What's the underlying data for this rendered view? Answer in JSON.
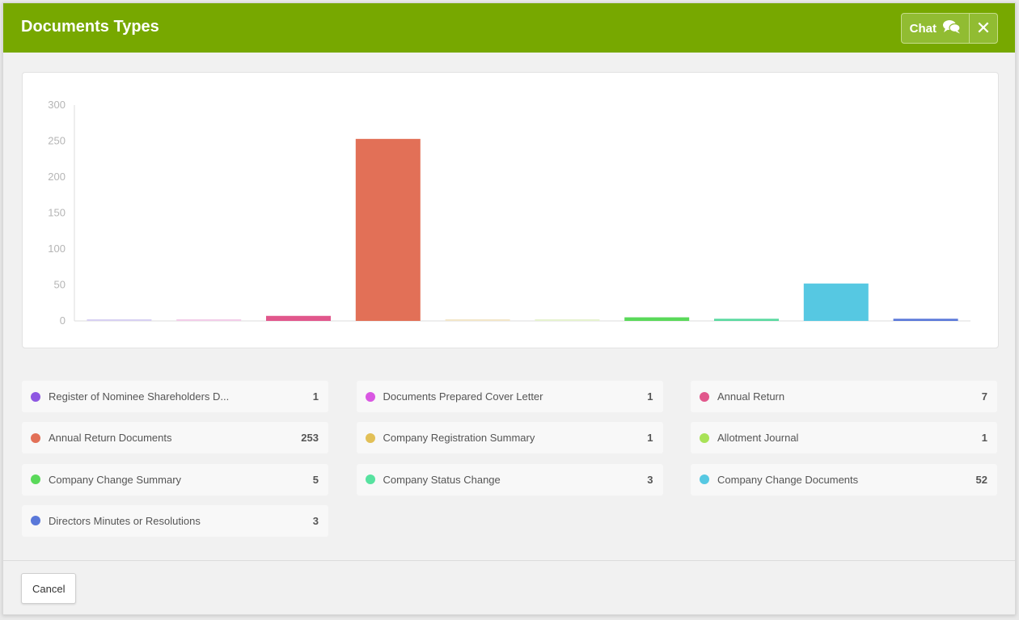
{
  "modal": {
    "title": "Documents Types",
    "chat_label": "Chat",
    "chat_icon": "chat-bubbles-icon",
    "close_icon": "close-icon",
    "close_glyph": "✕",
    "cancel_label": "Cancel"
  },
  "colors": {
    "header": "#77a800"
  },
  "chart_data": {
    "type": "bar",
    "title": "",
    "xlabel": "",
    "ylabel": "",
    "ylim": [
      0,
      300
    ],
    "yticks": [
      0,
      50,
      100,
      150,
      200,
      250,
      300
    ],
    "grid": false,
    "categories": [
      "Register of Nominee Shareholders D...",
      "Documents Prepared Cover Letter",
      "Annual Return",
      "Annual Return Documents",
      "Company Registration Summary",
      "Allotment Journal",
      "Company Change Summary",
      "Company Status Change",
      "Company Change Documents",
      "Directors Minutes or Resolutions"
    ],
    "values": [
      1,
      1,
      7,
      253,
      1,
      1,
      5,
      3,
      52,
      3
    ],
    "colors": [
      "#d7d0f2",
      "#f2cde9",
      "#e1578c",
      "#e27057",
      "#f2e6c8",
      "#e6f2cf",
      "#5ad95a",
      "#5ad9a0",
      "#56c8e2",
      "#5a78d9"
    ]
  },
  "legend": [
    {
      "label": "Register of Nominee Shareholders D...",
      "count": "1",
      "color": "#8e57e2"
    },
    {
      "label": "Documents Prepared Cover Letter",
      "count": "1",
      "color": "#d957e2"
    },
    {
      "label": "Annual Return",
      "count": "7",
      "color": "#e1578c"
    },
    {
      "label": "Annual Return Documents",
      "count": "253",
      "color": "#e27057"
    },
    {
      "label": "Company Registration Summary",
      "count": "1",
      "color": "#e2c057"
    },
    {
      "label": "Allotment Journal",
      "count": "1",
      "color": "#a8e257"
    },
    {
      "label": "Company Change Summary",
      "count": "5",
      "color": "#5ad95a"
    },
    {
      "label": "Company Status Change",
      "count": "3",
      "color": "#57e2a0"
    },
    {
      "label": "Company Change Documents",
      "count": "52",
      "color": "#56c8e2"
    },
    {
      "label": "Directors Minutes or Resolutions",
      "count": "3",
      "color": "#5a78d9"
    }
  ]
}
